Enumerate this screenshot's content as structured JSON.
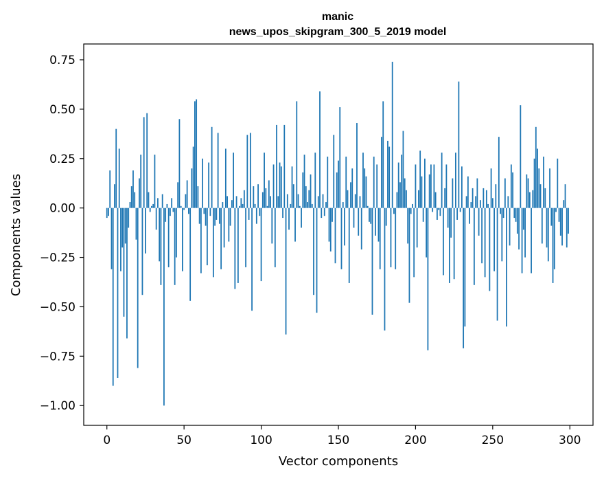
{
  "chart_data": {
    "type": "bar",
    "title": "manic",
    "subtitle": "news_upos_skipgram_300_5_2019 model",
    "xlabel": "Vector components",
    "ylabel": "Components values",
    "xlim": [
      -15,
      315
    ],
    "ylim": [
      -1.1,
      0.83
    ],
    "bar_color": "#1f77b4",
    "x_ticks": [
      {
        "value": 0,
        "label": "0"
      },
      {
        "value": 50,
        "label": "50"
      },
      {
        "value": 100,
        "label": "100"
      },
      {
        "value": 150,
        "label": "150"
      },
      {
        "value": 200,
        "label": "200"
      },
      {
        "value": 250,
        "label": "250"
      },
      {
        "value": 300,
        "label": "300"
      }
    ],
    "y_ticks": [
      {
        "value": 0.75,
        "label": "0.75"
      },
      {
        "value": 0.5,
        "label": "0.50"
      },
      {
        "value": 0.25,
        "label": "0.25"
      },
      {
        "value": 0.0,
        "label": "0.00"
      },
      {
        "value": -0.25,
        "label": "−0.25"
      },
      {
        "value": -0.5,
        "label": "−0.50"
      },
      {
        "value": -0.75,
        "label": "−0.75"
      },
      {
        "value": -1.0,
        "label": "−1.00"
      }
    ],
    "values": [
      -0.05,
      -0.04,
      0.19,
      -0.31,
      -0.9,
      0.12,
      0.4,
      -0.86,
      0.3,
      -0.32,
      -0.2,
      -0.55,
      -0.18,
      -0.66,
      -0.1,
      0.03,
      0.11,
      0.19,
      0.08,
      -0.16,
      -0.81,
      0.15,
      0.27,
      -0.44,
      0.46,
      -0.23,
      0.48,
      0.08,
      -0.02,
      0.01,
      0.02,
      0.27,
      -0.11,
      0.05,
      -0.27,
      -0.39,
      0.07,
      -1.0,
      -0.07,
      0.02,
      -0.3,
      -0.04,
      0.05,
      -0.02,
      -0.39,
      -0.25,
      0.13,
      0.45,
      0.01,
      -0.32,
      -0.01,
      0.07,
      0.14,
      -0.03,
      -0.47,
      0.2,
      0.31,
      0.54,
      0.55,
      0.11,
      -0.08,
      -0.33,
      0.25,
      -0.03,
      -0.09,
      -0.29,
      0.23,
      -0.04,
      0.41,
      -0.35,
      -0.09,
      -0.06,
      0.38,
      -0.08,
      -0.31,
      0.03,
      -0.2,
      0.3,
      0.06,
      -0.17,
      -0.09,
      0.04,
      0.28,
      -0.41,
      0.06,
      -0.38,
      0.01,
      0.05,
      0.02,
      0.09,
      -0.3,
      0.37,
      -0.06,
      0.38,
      -0.52,
      0.11,
      0.02,
      -0.08,
      0.12,
      -0.04,
      -0.37,
      0.08,
      0.28,
      0.1,
      0.01,
      0.14,
      0.06,
      -0.18,
      0.22,
      -0.3,
      0.42,
      0.06,
      0.23,
      0.21,
      -0.05,
      0.42,
      -0.64,
      0.07,
      -0.11,
      0.02,
      0.21,
      0.12,
      -0.17,
      0.54,
      0.07,
      0.01,
      -0.1,
      0.18,
      0.27,
      0.11,
      0.03,
      0.09,
      0.17,
      0.02,
      -0.44,
      0.28,
      -0.53,
      0.06,
      0.59,
      -0.05,
      0.07,
      -0.04,
      0.03,
      0.26,
      -0.17,
      -0.22,
      -0.07,
      0.37,
      -0.28,
      0.18,
      0.24,
      0.51,
      -0.31,
      0.03,
      -0.19,
      0.26,
      0.09,
      -0.38,
      0.13,
      0.2,
      -0.1,
      0.07,
      0.43,
      -0.14,
      0.06,
      -0.21,
      0.28,
      0.2,
      0.16,
      0.01,
      -0.07,
      -0.08,
      -0.54,
      0.26,
      -0.14,
      0.22,
      -0.17,
      -0.31,
      0.36,
      0.54,
      -0.62,
      -0.09,
      0.34,
      0.31,
      -0.3,
      0.74,
      -0.03,
      -0.31,
      0.08,
      0.23,
      0.13,
      0.27,
      0.39,
      0.15,
      0.09,
      -0.18,
      -0.48,
      -0.03,
      0.02,
      -0.35,
      0.22,
      -0.2,
      0.09,
      0.29,
      0.16,
      -0.07,
      0.25,
      -0.25,
      -0.72,
      0.17,
      0.22,
      -0.02,
      0.22,
      0.08,
      -0.06,
      -0.01,
      -0.04,
      0.28,
      -0.34,
      0.1,
      0.22,
      -0.1,
      -0.38,
      -0.15,
      0.15,
      -0.36,
      0.28,
      -0.06,
      0.64,
      -0.02,
      0.21,
      -0.71,
      -0.6,
      0.06,
      0.16,
      -0.08,
      0.03,
      0.1,
      -0.39,
      0.06,
      0.15,
      -0.14,
      0.04,
      -0.28,
      0.1,
      -0.35,
      0.09,
      0.02,
      -0.42,
      0.2,
      0.05,
      -0.32,
      0.12,
      -0.57,
      0.36,
      -0.03,
      -0.27,
      -0.05,
      0.15,
      -0.6,
      0.06,
      -0.19,
      0.22,
      0.18,
      -0.05,
      -0.07,
      -0.13,
      -0.21,
      0.52,
      -0.33,
      -0.11,
      -0.25,
      0.17,
      0.15,
      0.08,
      -0.33,
      0.09,
      0.25,
      0.41,
      0.3,
      0.2,
      0.12,
      -0.18,
      0.26,
      0.1,
      -0.2,
      -0.27,
      0.2,
      -0.09,
      -0.38,
      -0.31,
      -0.02,
      0.25,
      -0.07,
      -0.14,
      -0.19,
      0.04,
      0.12,
      -0.2,
      -0.13
    ]
  }
}
